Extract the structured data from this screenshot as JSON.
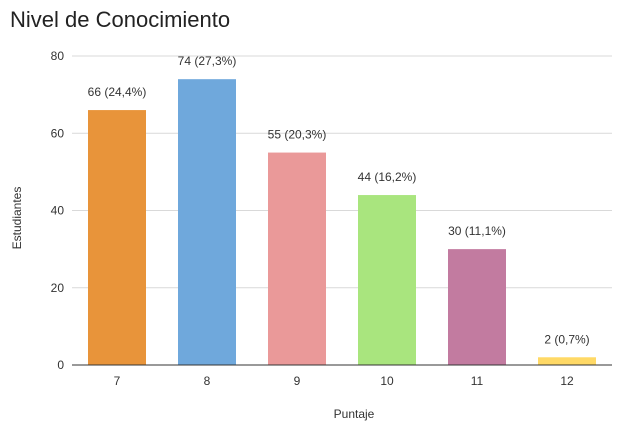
{
  "chart_data": {
    "type": "bar",
    "title": "Nivel de Conocimiento",
    "xlabel": "Puntaje",
    "ylabel": "Estudiantes",
    "categories": [
      "7",
      "8",
      "9",
      "10",
      "11",
      "12"
    ],
    "values": [
      66,
      74,
      55,
      44,
      30,
      2
    ],
    "data_labels": [
      "66 (24,4%)",
      "74 (27,3%)",
      "55 (20,3%)",
      "44 (16,2%)",
      "30 (11,1%)",
      "2 (0,7%)"
    ],
    "colors": [
      "#e8943a",
      "#6fa8dc",
      "#ea9999",
      "#a9e57e",
      "#c27ba0",
      "#ffd966"
    ],
    "ylim": [
      0,
      80
    ],
    "yticks": [
      0,
      20,
      40,
      60,
      80
    ],
    "grid": true,
    "legend": "none"
  }
}
